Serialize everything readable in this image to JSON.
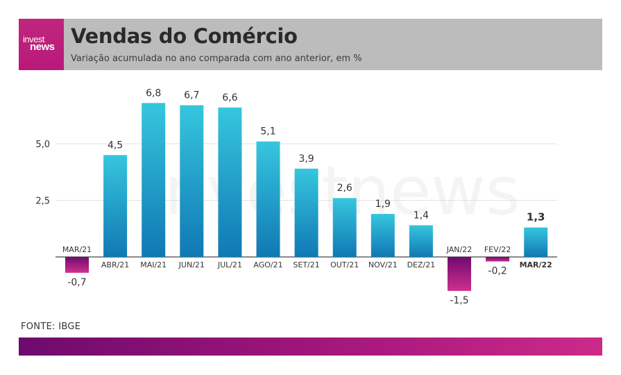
{
  "header": {
    "logo_line1": "invest",
    "logo_line2": "news",
    "title": "Vendas do Comércio",
    "subtitle": "Variação acumulada no ano comparada com ano anterior, em %"
  },
  "watermark": "investnews",
  "source": "FONTE: IBGE",
  "colors": {
    "positive_top": "#36c6de",
    "positive_bottom": "#1078b4",
    "negative_top": "#6e0a6e",
    "negative_bottom": "#d0308e",
    "header_bg": "#bcbcbc",
    "logo_bg": "#c0267e"
  },
  "chart_data": {
    "type": "bar",
    "title": "Vendas do Comércio",
    "subtitle": "Variação acumulada no ano comparada com ano anterior, em %",
    "categories": [
      "MAR/21",
      "ABR/21",
      "MAI/21",
      "JUN/21",
      "JUL/21",
      "AGO/21",
      "SET/21",
      "OUT/21",
      "NOV/21",
      "DEZ/21",
      "JAN/22",
      "FEV/22",
      "MAR/22"
    ],
    "values": [
      -0.7,
      4.5,
      6.8,
      6.7,
      6.6,
      5.1,
      3.9,
      2.6,
      1.9,
      1.4,
      -1.5,
      -0.2,
      1.3
    ],
    "value_labels": [
      "-0,7",
      "4,5",
      "6,8",
      "6,7",
      "6,6",
      "5,1",
      "3,9",
      "2,6",
      "1,9",
      "1,4",
      "-1,5",
      "-0,2",
      "1,3"
    ],
    "highlight_index": 12,
    "y_ticks": [
      2.5,
      5.0
    ],
    "y_tick_labels": [
      "2,5",
      "5,0"
    ],
    "ylim": [
      -2.5,
      7.5
    ],
    "grid": true,
    "legend": "none"
  }
}
